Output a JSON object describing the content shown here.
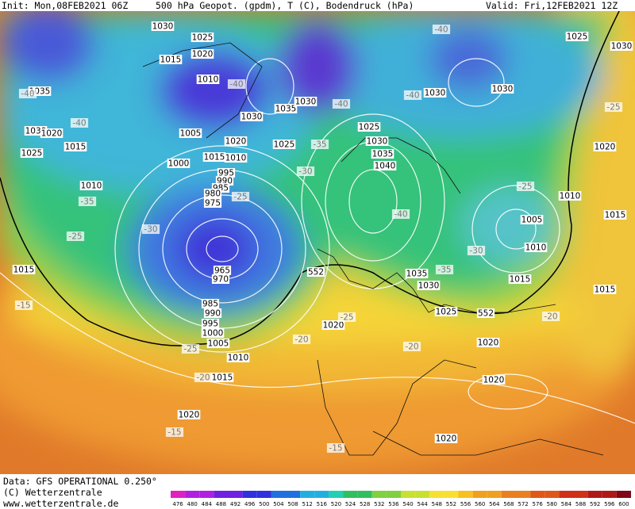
{
  "header": {
    "init": "Init: Mon,08FEB2021 06Z",
    "title": "500 hPa Geopot. (gpdm), T (C), Bodendruck (hPa)",
    "valid": "Valid: Fri,12FEB2021 12Z"
  },
  "map": {
    "labels": [
      "1030",
      "1025",
      "1015",
      "1020",
      "1010",
      "-40",
      "1035",
      "-40",
      "1030",
      "1020",
      "-40",
      "1015",
      "1025",
      "1005",
      "1030",
      "1035",
      "1030",
      "-40",
      "1020",
      "1025",
      "-35",
      "1025",
      "1030",
      "1035",
      "1040",
      "1000",
      "1015",
      "1010",
      "995",
      "990",
      "985",
      "980",
      "975",
      "-30",
      "-25",
      "1010",
      "-35",
      "-30",
      "-25",
      "965",
      "970",
      "1015",
      "552",
      "-40",
      "1035",
      "1030",
      "-35",
      "-30",
      "1005",
      "1010",
      "1015",
      "1010",
      "1015",
      "-25",
      "1020",
      "-25",
      "1030",
      "1025",
      "-40",
      "-40",
      "1030",
      "1030",
      "985",
      "990",
      "995",
      "1000",
      "1005",
      "-25",
      "1010",
      "-20",
      "1015",
      "1020",
      "-25",
      "-20",
      "-20",
      "1025",
      "552",
      "-20",
      "1020",
      "1015",
      "-15",
      "1020",
      "-15",
      "1020",
      "-15",
      "1020"
    ]
  },
  "footer": {
    "data": "Data: GFS OPERATIONAL 0.250°",
    "copyright": "(C) Wetterzentrale",
    "url": "www.wetterzentrale.de"
  },
  "colorbar": {
    "labels": [
      476,
      480,
      484,
      488,
      492,
      496,
      500,
      504,
      508,
      512,
      516,
      520,
      524,
      528,
      532,
      536,
      540,
      544,
      548,
      552,
      556,
      560,
      564,
      568,
      572,
      576,
      580,
      584,
      588,
      592,
      596,
      600
    ]
  }
}
